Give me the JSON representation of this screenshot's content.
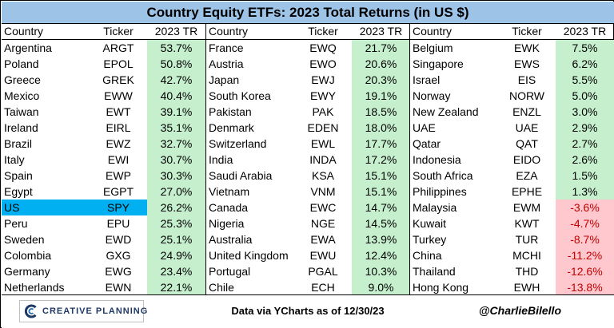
{
  "title": "Country Equity ETFs: 2023 Total Returns (in US $)",
  "headers": {
    "country": "Country",
    "ticker": "Ticker",
    "tr": "2023 TR"
  },
  "columns": [
    [
      {
        "country": "Argentina",
        "ticker": "ARGT",
        "tr": "53.7%",
        "sign": "pos"
      },
      {
        "country": "Poland",
        "ticker": "EPOL",
        "tr": "50.8%",
        "sign": "pos"
      },
      {
        "country": "Greece",
        "ticker": "GREK",
        "tr": "42.7%",
        "sign": "pos"
      },
      {
        "country": "Mexico",
        "ticker": "EWW",
        "tr": "40.4%",
        "sign": "pos"
      },
      {
        "country": "Taiwan",
        "ticker": "EWT",
        "tr": "39.1%",
        "sign": "pos"
      },
      {
        "country": "Ireland",
        "ticker": "EIRL",
        "tr": "35.1%",
        "sign": "pos"
      },
      {
        "country": "Brazil",
        "ticker": "EWZ",
        "tr": "32.7%",
        "sign": "pos"
      },
      {
        "country": "Italy",
        "ticker": "EWI",
        "tr": "30.7%",
        "sign": "pos"
      },
      {
        "country": "Spain",
        "ticker": "EWP",
        "tr": "30.3%",
        "sign": "pos"
      },
      {
        "country": "Egypt",
        "ticker": "EGPT",
        "tr": "27.0%",
        "sign": "pos"
      },
      {
        "country": "US",
        "ticker": "SPY",
        "tr": "26.2%",
        "sign": "pos",
        "highlight": true
      },
      {
        "country": "Peru",
        "ticker": "EPU",
        "tr": "25.3%",
        "sign": "pos"
      },
      {
        "country": "Sweden",
        "ticker": "EWD",
        "tr": "25.1%",
        "sign": "pos"
      },
      {
        "country": "Colombia",
        "ticker": "GXG",
        "tr": "24.9%",
        "sign": "pos"
      },
      {
        "country": "Germany",
        "ticker": "EWG",
        "tr": "23.4%",
        "sign": "pos"
      },
      {
        "country": "Netherlands",
        "ticker": "EWN",
        "tr": "22.1%",
        "sign": "pos"
      }
    ],
    [
      {
        "country": "France",
        "ticker": "EWQ",
        "tr": "21.7%",
        "sign": "pos"
      },
      {
        "country": "Austria",
        "ticker": "EWO",
        "tr": "20.6%",
        "sign": "pos"
      },
      {
        "country": "Japan",
        "ticker": "EWJ",
        "tr": "20.3%",
        "sign": "pos"
      },
      {
        "country": "South Korea",
        "ticker": "EWY",
        "tr": "19.1%",
        "sign": "pos"
      },
      {
        "country": "Pakistan",
        "ticker": "PAK",
        "tr": "18.5%",
        "sign": "pos"
      },
      {
        "country": "Denmark",
        "ticker": "EDEN",
        "tr": "18.0%",
        "sign": "pos"
      },
      {
        "country": "Switzerland",
        "ticker": "EWL",
        "tr": "17.7%",
        "sign": "pos"
      },
      {
        "country": "India",
        "ticker": "INDA",
        "tr": "17.2%",
        "sign": "pos"
      },
      {
        "country": "Saudi Arabia",
        "ticker": "KSA",
        "tr": "15.1%",
        "sign": "pos"
      },
      {
        "country": "Vietnam",
        "ticker": "VNM",
        "tr": "15.1%",
        "sign": "pos"
      },
      {
        "country": "Canada",
        "ticker": "EWC",
        "tr": "14.7%",
        "sign": "pos"
      },
      {
        "country": "Nigeria",
        "ticker": "NGE",
        "tr": "14.5%",
        "sign": "pos"
      },
      {
        "country": "Australia",
        "ticker": "EWA",
        "tr": "13.9%",
        "sign": "pos"
      },
      {
        "country": "United Kingdom",
        "ticker": "EWU",
        "tr": "12.4%",
        "sign": "pos"
      },
      {
        "country": "Portugal",
        "ticker": "PGAL",
        "tr": "10.3%",
        "sign": "pos"
      },
      {
        "country": "Chile",
        "ticker": "ECH",
        "tr": "9.0%",
        "sign": "pos"
      }
    ],
    [
      {
        "country": "Belgium",
        "ticker": "EWK",
        "tr": "7.5%",
        "sign": "pos"
      },
      {
        "country": "Singapore",
        "ticker": "EWS",
        "tr": "6.2%",
        "sign": "pos"
      },
      {
        "country": "Israel",
        "ticker": "EIS",
        "tr": "5.5%",
        "sign": "pos"
      },
      {
        "country": "Norway",
        "ticker": "NORW",
        "tr": "5.0%",
        "sign": "pos"
      },
      {
        "country": "New Zealand",
        "ticker": "ENZL",
        "tr": "3.0%",
        "sign": "pos"
      },
      {
        "country": "UAE",
        "ticker": "UAE",
        "tr": "2.9%",
        "sign": "pos"
      },
      {
        "country": "Qatar",
        "ticker": "QAT",
        "tr": "2.7%",
        "sign": "pos"
      },
      {
        "country": "Indonesia",
        "ticker": "EIDO",
        "tr": "2.6%",
        "sign": "pos"
      },
      {
        "country": "South Africa",
        "ticker": "EZA",
        "tr": "1.5%",
        "sign": "pos"
      },
      {
        "country": "Philippines",
        "ticker": "EPHE",
        "tr": "1.3%",
        "sign": "pos"
      },
      {
        "country": "Malaysia",
        "ticker": "EWM",
        "tr": "-3.6%",
        "sign": "neg"
      },
      {
        "country": "Kuwait",
        "ticker": "KWT",
        "tr": "-4.7%",
        "sign": "neg"
      },
      {
        "country": "Turkey",
        "ticker": "TUR",
        "tr": "-8.7%",
        "sign": "neg"
      },
      {
        "country": "China",
        "ticker": "MCHI",
        "tr": "-11.2%",
        "sign": "neg"
      },
      {
        "country": "Thailand",
        "ticker": "THD",
        "tr": "-12.6%",
        "sign": "neg"
      },
      {
        "country": "Hong Kong",
        "ticker": "EWH",
        "tr": "-13.8%",
        "sign": "neg"
      }
    ]
  ],
  "colors": {
    "header_bg": "#9dc3e6",
    "positive_bg": "#c6efce",
    "negative_bg": "#ffc7ce",
    "negative_text": "#c00000",
    "highlight_bg": "#00b0f0"
  },
  "footer": {
    "logo_text": "CREATIVE PLANNING",
    "logo_icon": "creative-planning-c-logo",
    "source": "Data via YCharts as of 12/30/23",
    "handle": "@CharlieBilello"
  }
}
